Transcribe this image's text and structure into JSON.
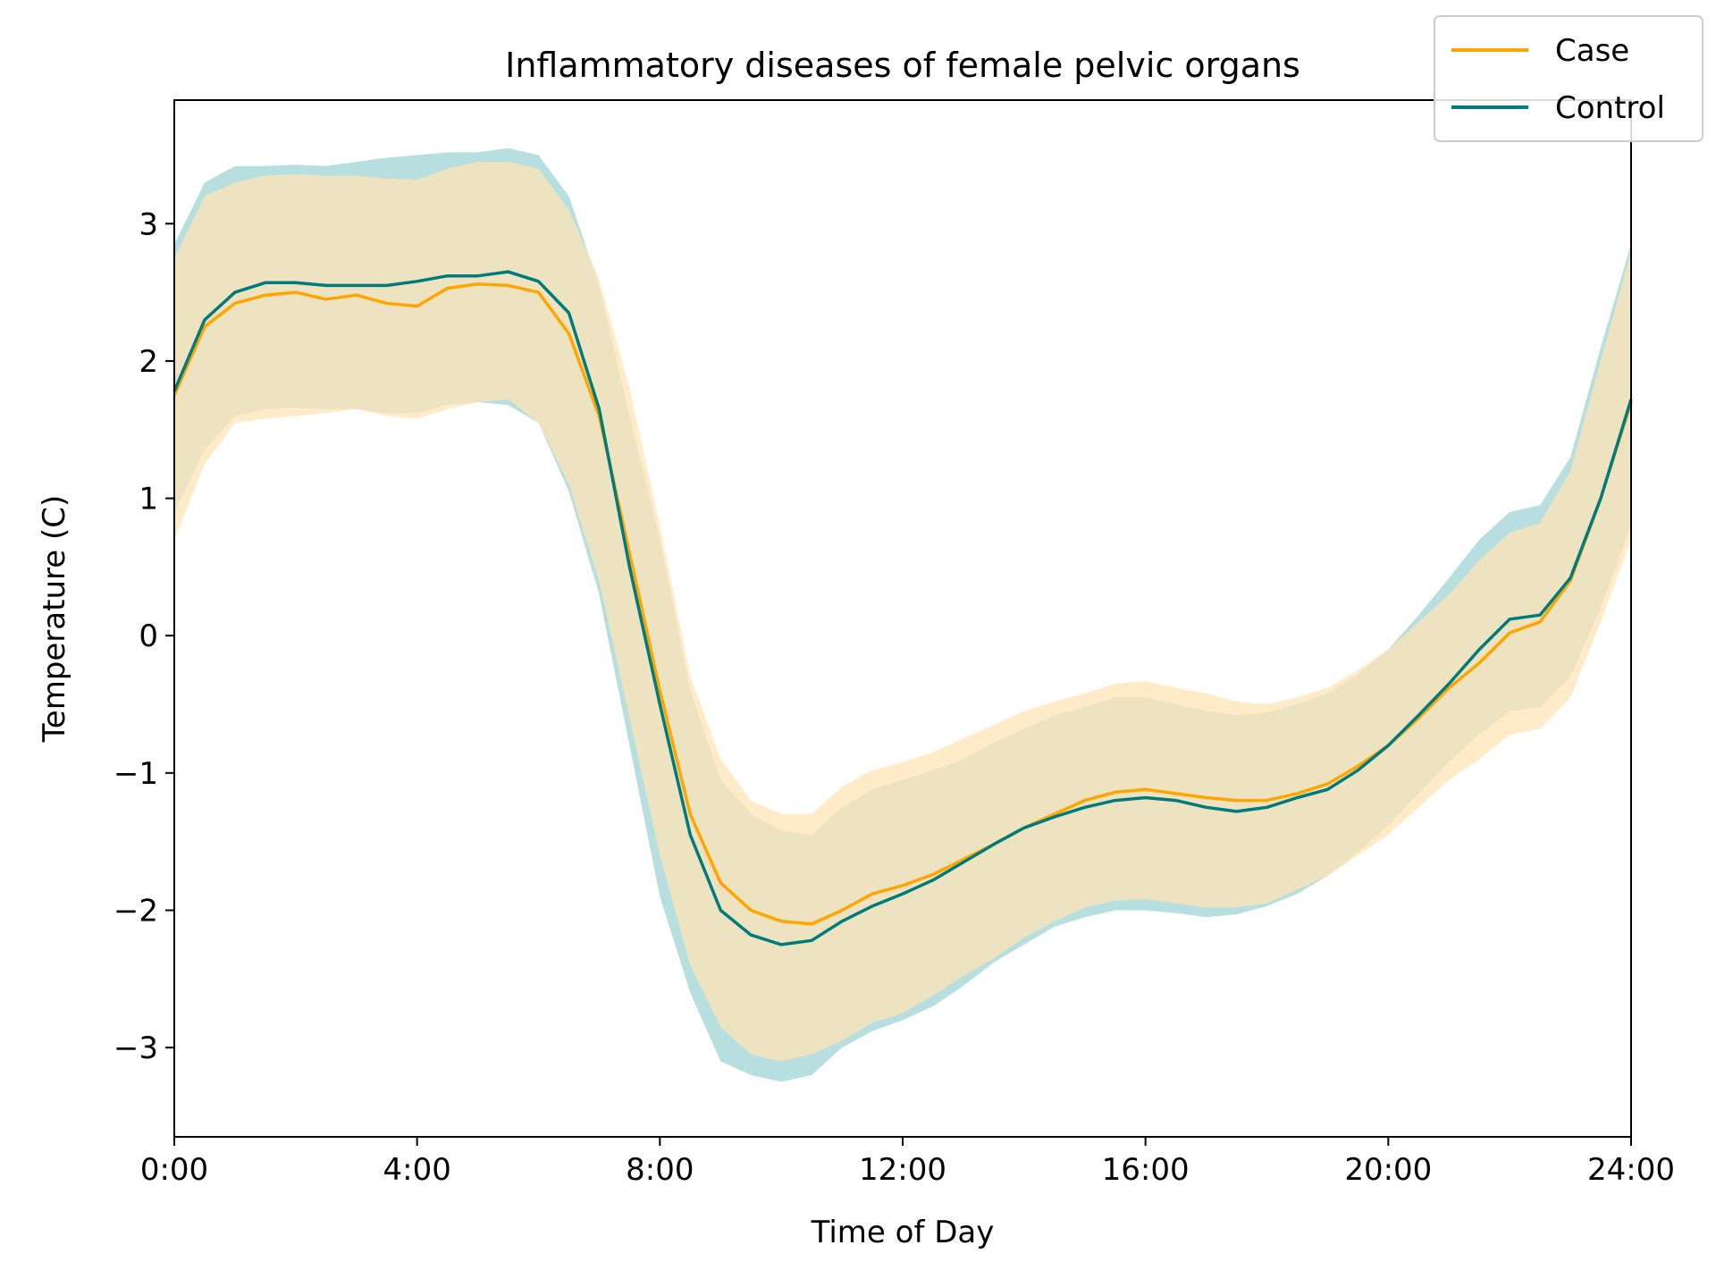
{
  "chart_data": {
    "type": "line",
    "title": "Inflammatory diseases of female pelvic organs",
    "xlabel": "Time of Day",
    "ylabel": "Temperature (C)",
    "xlim": [
      0,
      24
    ],
    "ylim": [
      -3.65,
      3.9
    ],
    "x_ticks": [
      0,
      4,
      8,
      12,
      16,
      20,
      24
    ],
    "x_tick_labels": [
      "0:00",
      "4:00",
      "8:00",
      "12:00",
      "16:00",
      "20:00",
      "24:00"
    ],
    "y_ticks": [
      -3,
      -2,
      -1,
      0,
      1,
      2,
      3
    ],
    "y_tick_labels": [
      "−3",
      "−2",
      "−1",
      "0",
      "1",
      "2",
      "3"
    ],
    "grid": false,
    "legend_position": "top-right",
    "x": [
      0,
      0.5,
      1,
      1.5,
      2,
      2.5,
      3,
      3.5,
      4,
      4.5,
      5,
      5.5,
      6,
      6.5,
      7,
      7.5,
      8,
      8.5,
      9,
      9.5,
      10,
      10.5,
      11,
      11.5,
      12,
      12.5,
      13,
      13.5,
      14,
      14.5,
      15,
      15.5,
      16,
      16.5,
      17,
      17.5,
      18,
      18.5,
      19,
      19.5,
      20,
      20.5,
      21,
      21.5,
      22,
      22.5,
      23,
      23.5,
      24
    ],
    "series": [
      {
        "name": "Case",
        "color": "#FFA500",
        "band_color": "#FFE4B5",
        "values": [
          1.75,
          2.25,
          2.42,
          2.48,
          2.5,
          2.45,
          2.48,
          2.42,
          2.4,
          2.53,
          2.56,
          2.55,
          2.5,
          2.2,
          1.6,
          0.6,
          -0.4,
          -1.3,
          -1.8,
          -2.0,
          -2.08,
          -2.1,
          -2.0,
          -1.88,
          -1.82,
          -1.74,
          -1.63,
          -1.52,
          -1.4,
          -1.3,
          -1.2,
          -1.14,
          -1.12,
          -1.15,
          -1.18,
          -1.2,
          -1.2,
          -1.15,
          -1.08,
          -0.95,
          -0.8,
          -0.6,
          -0.38,
          -0.2,
          0.02,
          0.1,
          0.4,
          1.0,
          1.7
        ],
        "lower": [
          0.7,
          1.25,
          1.55,
          1.58,
          1.6,
          1.62,
          1.65,
          1.6,
          1.58,
          1.65,
          1.7,
          1.72,
          1.55,
          1.1,
          0.4,
          -0.6,
          -1.6,
          -2.4,
          -2.85,
          -3.05,
          -3.1,
          -3.05,
          -2.95,
          -2.82,
          -2.75,
          -2.62,
          -2.48,
          -2.35,
          -2.2,
          -2.08,
          -1.98,
          -1.93,
          -1.92,
          -1.95,
          -1.98,
          -1.98,
          -1.95,
          -1.85,
          -1.75,
          -1.6,
          -1.45,
          -1.25,
          -1.05,
          -0.9,
          -0.72,
          -0.68,
          -0.45,
          0.1,
          0.7
        ],
        "upper": [
          2.75,
          3.2,
          3.3,
          3.35,
          3.36,
          3.35,
          3.35,
          3.33,
          3.32,
          3.4,
          3.45,
          3.45,
          3.4,
          3.1,
          2.6,
          1.8,
          0.8,
          -0.3,
          -0.9,
          -1.2,
          -1.3,
          -1.3,
          -1.1,
          -0.98,
          -0.92,
          -0.85,
          -0.75,
          -0.65,
          -0.55,
          -0.48,
          -0.42,
          -0.35,
          -0.33,
          -0.38,
          -0.42,
          -0.48,
          -0.5,
          -0.45,
          -0.38,
          -0.25,
          -0.1,
          0.1,
          0.3,
          0.55,
          0.75,
          0.82,
          1.2,
          2.0,
          2.8
        ]
      },
      {
        "name": "Control",
        "color": "#007B7B",
        "band_color": "#B0DCDC",
        "values": [
          1.78,
          2.3,
          2.5,
          2.57,
          2.57,
          2.55,
          2.55,
          2.55,
          2.58,
          2.62,
          2.62,
          2.65,
          2.58,
          2.35,
          1.65,
          0.5,
          -0.5,
          -1.45,
          -2.0,
          -2.18,
          -2.25,
          -2.22,
          -2.08,
          -1.97,
          -1.88,
          -1.78,
          -1.65,
          -1.52,
          -1.4,
          -1.32,
          -1.25,
          -1.2,
          -1.18,
          -1.2,
          -1.25,
          -1.28,
          -1.25,
          -1.18,
          -1.12,
          -0.98,
          -0.8,
          -0.58,
          -0.35,
          -0.1,
          0.12,
          0.15,
          0.42,
          1.0,
          1.72
        ],
        "lower": [
          0.9,
          1.35,
          1.6,
          1.65,
          1.66,
          1.65,
          1.65,
          1.62,
          1.62,
          1.68,
          1.7,
          1.68,
          1.55,
          1.05,
          0.3,
          -0.8,
          -1.9,
          -2.6,
          -3.1,
          -3.2,
          -3.25,
          -3.2,
          -3.0,
          -2.88,
          -2.8,
          -2.7,
          -2.55,
          -2.38,
          -2.25,
          -2.12,
          -2.05,
          -2.0,
          -2.0,
          -2.02,
          -2.05,
          -2.03,
          -1.97,
          -1.88,
          -1.75,
          -1.58,
          -1.38,
          -1.15,
          -0.92,
          -0.72,
          -0.55,
          -0.52,
          -0.3,
          0.2,
          0.8
        ],
        "upper": [
          2.85,
          3.3,
          3.42,
          3.42,
          3.43,
          3.42,
          3.45,
          3.48,
          3.5,
          3.52,
          3.52,
          3.55,
          3.5,
          3.2,
          2.55,
          1.6,
          0.7,
          -0.4,
          -1.05,
          -1.3,
          -1.42,
          -1.45,
          -1.25,
          -1.12,
          -1.05,
          -0.98,
          -0.9,
          -0.78,
          -0.68,
          -0.58,
          -0.52,
          -0.45,
          -0.45,
          -0.5,
          -0.55,
          -0.58,
          -0.56,
          -0.5,
          -0.42,
          -0.28,
          -0.1,
          0.15,
          0.42,
          0.7,
          0.9,
          0.95,
          1.3,
          2.1,
          2.85
        ]
      }
    ]
  }
}
